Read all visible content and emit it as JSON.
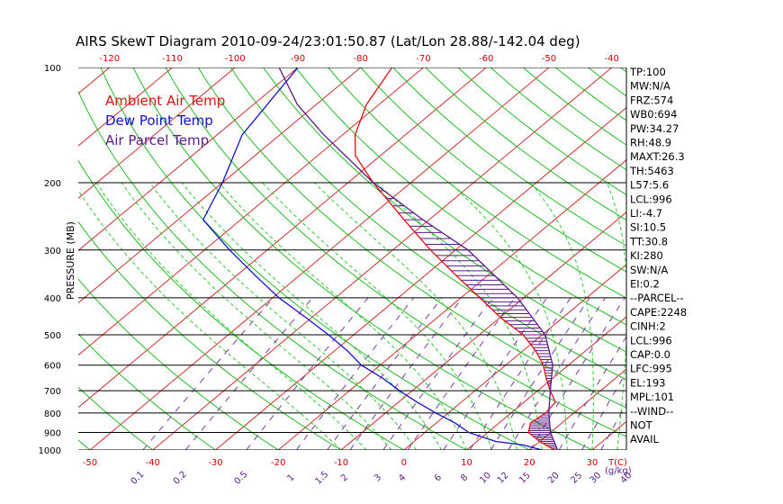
{
  "chart_data": {
    "type": "skewt",
    "title": "AIRS SkewT Diagram 2010-09-24/23:01:50.87 (Lat/Lon 28.88/-142.04 deg)",
    "ylabel": "PRESSURE (MB)",
    "x_unit_label": "T(C)",
    "mixing_ratio_label": "(g/kg)",
    "pressure_ticks": [
      100,
      200,
      300,
      400,
      500,
      600,
      700,
      800,
      900,
      1000
    ],
    "bottom_temperature_ticks": [
      -50,
      -40,
      -30,
      -20,
      -10,
      0,
      10,
      20,
      30
    ],
    "top_temperature_ticks": [
      -120,
      -110,
      -100,
      -90,
      -80,
      -70,
      -60,
      -50,
      -40
    ],
    "mixing_ratio_ticks": [
      "0.1",
      "0.2",
      "0.5",
      "1",
      "1.5",
      "2",
      "3",
      "4",
      "6",
      "8",
      "10",
      "12",
      "15",
      "20",
      "25",
      "30",
      "40"
    ],
    "legend": [
      {
        "label": "Ambient Air Temp",
        "color": "#e01010"
      },
      {
        "label": "Dew Point Temp",
        "color": "#1010d0"
      },
      {
        "label": "Air Parcel Temp",
        "color": "#5a1a8c"
      }
    ],
    "series": [
      {
        "name": "Ambient Air Temp",
        "color": "#e01010",
        "points": [
          [
            1000,
            24
          ],
          [
            950,
            20
          ],
          [
            900,
            16.5
          ],
          [
            850,
            15
          ],
          [
            800,
            15.5
          ],
          [
            750,
            15
          ],
          [
            700,
            12
          ],
          [
            650,
            9
          ],
          [
            600,
            6
          ],
          [
            550,
            2
          ],
          [
            500,
            -3
          ],
          [
            450,
            -10
          ],
          [
            400,
            -17
          ],
          [
            350,
            -25
          ],
          [
            300,
            -34
          ],
          [
            250,
            -44
          ],
          [
            200,
            -56
          ],
          [
            170,
            -64
          ],
          [
            150,
            -68
          ],
          [
            125,
            -72
          ],
          [
            100,
            -75
          ]
        ]
      },
      {
        "name": "Dew Point Temp",
        "color": "#1010d0",
        "points": [
          [
            1000,
            22
          ],
          [
            970,
            18
          ],
          [
            950,
            13
          ],
          [
            900,
            7
          ],
          [
            850,
            3
          ],
          [
            800,
            -2
          ],
          [
            750,
            -7
          ],
          [
            700,
            -12
          ],
          [
            650,
            -17
          ],
          [
            600,
            -23
          ],
          [
            550,
            -28
          ],
          [
            500,
            -34
          ],
          [
            450,
            -41
          ],
          [
            400,
            -49
          ],
          [
            350,
            -57
          ],
          [
            300,
            -66
          ],
          [
            250,
            -76
          ],
          [
            200,
            -80
          ],
          [
            150,
            -86
          ],
          [
            100,
            -90
          ]
        ]
      },
      {
        "name": "Air Parcel Temp",
        "color": "#5a1a8c",
        "points": [
          [
            1000,
            24.5
          ],
          [
            900,
            20
          ],
          [
            800,
            16
          ],
          [
            700,
            12
          ],
          [
            600,
            7.5
          ],
          [
            500,
            0.5
          ],
          [
            400,
            -11
          ],
          [
            300,
            -28
          ],
          [
            250,
            -41
          ],
          [
            200,
            -56
          ],
          [
            150,
            -73
          ],
          [
            125,
            -83
          ],
          [
            100,
            -93
          ]
        ]
      }
    ],
    "indices": [
      "TP:100",
      "MW:N/A",
      "FRZ:574",
      "WB0:694",
      "PW:34.27",
      "RH:48.9",
      "MAXT:26.3",
      "TH:5463",
      "L57:5.6",
      "LCL:996",
      "LI:-4.7",
      "SI:10.5",
      "TT:30.8",
      "KI:280",
      "SW:N/A",
      "EI:0.2",
      "--PARCEL--",
      "CAPE:2248",
      "CINH:2",
      "LCL:996",
      "CAP:0.0",
      "LFC:995",
      "EL:193",
      "MPL:101",
      "--WIND--",
      "NOT",
      "AVAIL"
    ]
  }
}
